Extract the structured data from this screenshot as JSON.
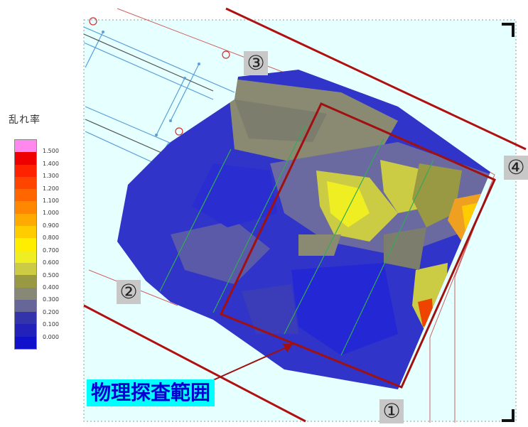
{
  "legend": {
    "title": "乱れ率",
    "items": [
      {
        "label": "",
        "color": "#ff88ee"
      },
      {
        "label": "1.500",
        "color": "#ee0000"
      },
      {
        "label": "1.400",
        "color": "#ff2200"
      },
      {
        "label": "1.300",
        "color": "#ff4400"
      },
      {
        "label": "1.200",
        "color": "#ff6600"
      },
      {
        "label": "1.100",
        "color": "#ff8800"
      },
      {
        "label": "1.000",
        "color": "#ffaa00"
      },
      {
        "label": "0.900",
        "color": "#ffcc00"
      },
      {
        "label": "0.800",
        "color": "#ffee00"
      },
      {
        "label": "0.700",
        "color": "#eeee22"
      },
      {
        "label": "0.600",
        "color": "#cccc44"
      },
      {
        "label": "0.500",
        "color": "#999944"
      },
      {
        "label": "0.400",
        "color": "#888877"
      },
      {
        "label": "0.300",
        "color": "#666699"
      },
      {
        "label": "0.200",
        "color": "#3333aa"
      },
      {
        "label": "0.100",
        "color": "#2222bb"
      },
      {
        "label": "0.000",
        "color": "#1111cc"
      }
    ]
  },
  "markers": {
    "m1": "①",
    "m2": "②",
    "m3": "③",
    "m4": "④"
  },
  "survey_label": "物理探査範囲",
  "colors": {
    "background": "#e6ffff",
    "boundary": "#a01010",
    "blue_lines": "#5aa0d8",
    "green_lines": "#33aa55",
    "cold": "#2a2ed0",
    "mid": "#8a8a72",
    "warm": "#e8e830",
    "hot": "#f0a020"
  }
}
